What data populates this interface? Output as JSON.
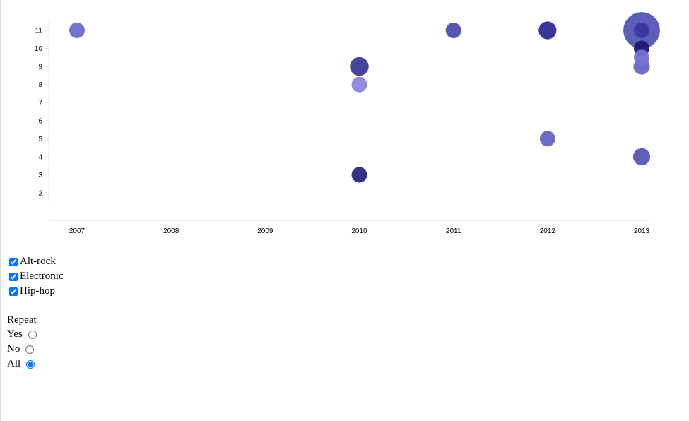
{
  "chart_data": {
    "type": "scatter",
    "title": "",
    "xlabel": "",
    "ylabel": "",
    "x_ticks": [
      "2007",
      "2008",
      "2009",
      "2010",
      "2011",
      "2012",
      "2013"
    ],
    "y_ticks": [
      "2",
      "3",
      "4",
      "5",
      "6",
      "7",
      "8",
      "9",
      "10",
      "11"
    ],
    "xlim": [
      2007,
      2013
    ],
    "ylim": [
      2,
      11
    ],
    "grid": false,
    "points": [
      {
        "x": 2007,
        "y": 11,
        "r": 1,
        "color": "#6b6bcc"
      },
      {
        "x": 2010,
        "y": 9,
        "r": 1.2,
        "color": "#3a3a98"
      },
      {
        "x": 2010,
        "y": 8,
        "r": 1,
        "color": "#8a86de"
      },
      {
        "x": 2010,
        "y": 3,
        "r": 1,
        "color": "#2a2780"
      },
      {
        "x": 2011,
        "y": 11,
        "r": 1,
        "color": "#4c4cae"
      },
      {
        "x": 2012,
        "y": 11,
        "r": 1.15,
        "color": "#2e2c96"
      },
      {
        "x": 2012,
        "y": 5,
        "r": 1,
        "color": "#6464c4"
      },
      {
        "x": 2013,
        "y": 11,
        "r": 2.35,
        "color": "#5454b6"
      },
      {
        "x": 2013,
        "y": 11,
        "r": 1,
        "color": "#3a36a0"
      },
      {
        "x": 2013,
        "y": 10,
        "r": 1,
        "color": "#1c1a70"
      },
      {
        "x": 2013,
        "y": 9.5,
        "r": 1,
        "color": "#7472d2"
      },
      {
        "x": 2013,
        "y": 9,
        "r": 1.05,
        "color": "#6666c8"
      },
      {
        "x": 2013,
        "y": 4,
        "r": 1.1,
        "color": "#5656b8"
      }
    ]
  },
  "filters": {
    "genres": [
      {
        "label": "Alt-rock",
        "checked": true
      },
      {
        "label": "Electronic",
        "checked": true
      },
      {
        "label": "Hip-hop",
        "checked": true
      }
    ],
    "repeat": {
      "title": "Repeat",
      "options": [
        {
          "label": "Yes",
          "checked": false
        },
        {
          "label": "No",
          "checked": false
        },
        {
          "label": "All",
          "checked": true
        }
      ]
    }
  }
}
